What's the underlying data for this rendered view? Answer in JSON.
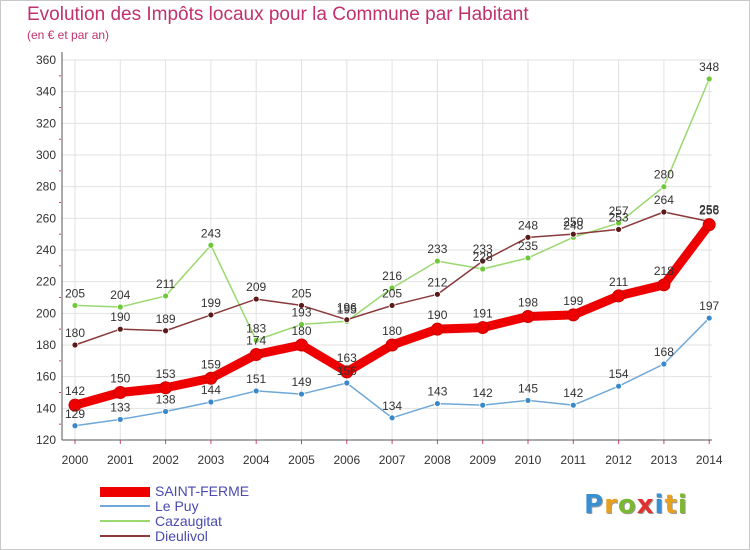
{
  "title": "Evolution des Impôts locaux pour la Commune par Habitant",
  "subtitle": "(en € et par an)",
  "logo": {
    "text": "Proxiti",
    "letters": [
      "P",
      "r",
      "o",
      "x",
      "i",
      "t",
      "i"
    ],
    "colors": [
      "#3a8fd0",
      "#e8a020",
      "#7ab830",
      "#e03030",
      "#3a8fd0",
      "#e8a020",
      "#7ab830"
    ]
  },
  "chart_data": {
    "type": "line",
    "title": "Evolution des Impôts locaux pour la Commune par Habitant",
    "subtitle": "(en € et par an)",
    "xlabel": "",
    "ylabel": "",
    "x": [
      "2000",
      "2001",
      "2002",
      "2003",
      "2004",
      "2005",
      "2006",
      "2007",
      "2008",
      "2009",
      "2010",
      "2011",
      "2012",
      "2013",
      "2014"
    ],
    "ylim": [
      120,
      360
    ],
    "yticks": [
      120,
      140,
      160,
      180,
      200,
      220,
      240,
      260,
      280,
      300,
      320,
      340,
      360
    ],
    "grid": true,
    "legend_position": "bottom-left",
    "series": [
      {
        "name": "SAINT-FERME",
        "color": "#ee0000",
        "marker": "#ee0000",
        "thick": true,
        "values": [
          142,
          150,
          153,
          159,
          174,
          180,
          163,
          180,
          190,
          191,
          198,
          199,
          211,
          218,
          256
        ],
        "labels": [
          "142",
          "150",
          "153",
          "159",
          "174",
          "180",
          "163",
          "180",
          "190",
          "191",
          "198",
          "199",
          "211",
          "218",
          "256"
        ]
      },
      {
        "name": "Le Puy",
        "color": "#6fa8d8",
        "marker": "#3a88c8",
        "thick": false,
        "values": [
          129,
          133,
          138,
          144,
          151,
          149,
          156,
          134,
          143,
          142,
          145,
          142,
          154,
          168,
          197
        ],
        "labels": [
          "129",
          "133",
          "138",
          "144",
          "151",
          "149",
          "156",
          "134",
          "143",
          "142",
          "145",
          "142",
          "154",
          "168",
          "197"
        ]
      },
      {
        "name": "Cazaugitat",
        "color": "#9ad870",
        "marker": "#6ec83a",
        "thick": false,
        "values": [
          205,
          204,
          211,
          243,
          183,
          193,
          195,
          216,
          233,
          228,
          235,
          248,
          257,
          280,
          348
        ],
        "labels": [
          "205",
          "204",
          "211",
          "243",
          "183",
          "193",
          "195",
          "216",
          "233",
          "228",
          "235",
          "248",
          "257",
          "280",
          "348"
        ]
      },
      {
        "name": "Dieulivol",
        "color": "#8a3a3a",
        "marker": "#5a1a1a",
        "thick": false,
        "values": [
          180,
          190,
          189,
          199,
          209,
          205,
          196,
          205,
          212,
          233,
          248,
          250,
          253,
          264,
          258
        ],
        "labels": [
          "180",
          "190",
          "189",
          "199",
          "209",
          "205",
          "196",
          "205",
          "212",
          "233",
          "248",
          "250",
          "253",
          "264",
          "258"
        ]
      }
    ]
  }
}
